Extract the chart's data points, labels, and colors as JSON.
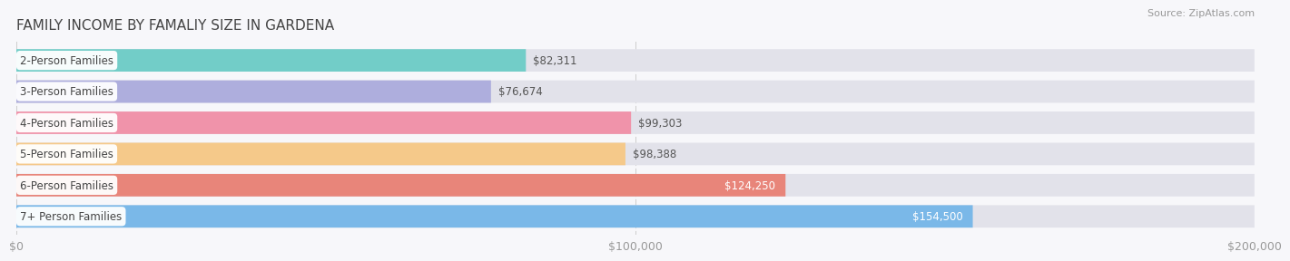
{
  "title": "FAMILY INCOME BY FAMALIY SIZE IN GARDENA",
  "source": "Source: ZipAtlas.com",
  "categories": [
    "2-Person Families",
    "3-Person Families",
    "4-Person Families",
    "5-Person Families",
    "6-Person Families",
    "7+ Person Families"
  ],
  "values": [
    82311,
    76674,
    99303,
    98388,
    124250,
    154500
  ],
  "value_labels": [
    "$82,311",
    "$76,674",
    "$99,303",
    "$98,388",
    "$124,250",
    "$154,500"
  ],
  "bar_colors": [
    "#72cdc8",
    "#aeaedd",
    "#f093aa",
    "#f5c98a",
    "#e8857a",
    "#7ab8e8"
  ],
  "background_color": "#f7f7fa",
  "bar_bg_color": "#e2e2ea",
  "xlim": [
    0,
    200000
  ],
  "xticks": [
    0,
    100000,
    200000
  ],
  "xtick_labels": [
    "$0",
    "$100,000",
    "$200,000"
  ],
  "value_label_inside": [
    false,
    false,
    false,
    false,
    true,
    true
  ],
  "value_label_colors_outside": "#555555",
  "value_label_colors_inside": "#ffffff"
}
